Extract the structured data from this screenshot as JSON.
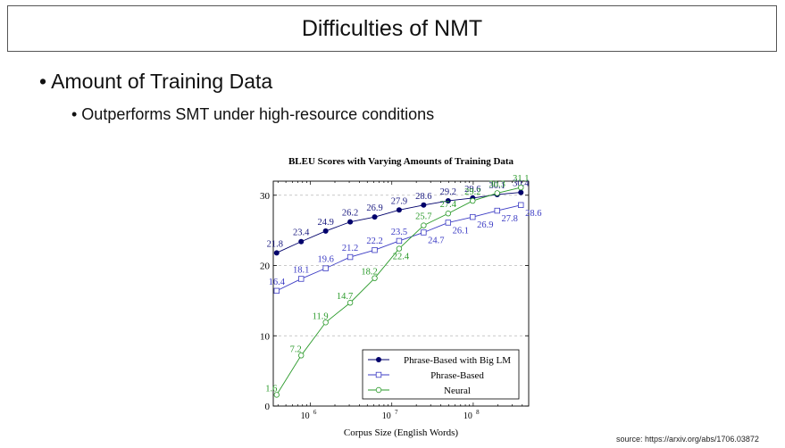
{
  "slide": {
    "title": "Difficulties of NMT",
    "bullet_1": "• Amount of Training Data",
    "bullet_2": "• Outperforms SMT under high-resource conditions",
    "source": "source: https://arxiv.org/abs/1706.03872"
  },
  "chart_data": {
    "type": "line",
    "title": "BLEU Scores with Varying Amounts of Training Data",
    "xlabel": "Corpus Size (English Words)",
    "ylabel": "",
    "x_scale": "log",
    "xlim": [
      350000,
      480000000
    ],
    "ylim": [
      0,
      32
    ],
    "x_ticks": [
      {
        "value": 1000000,
        "base": "10",
        "exp": "6"
      },
      {
        "value": 10000000,
        "base": "10",
        "exp": "7"
      },
      {
        "value": 100000000,
        "base": "10",
        "exp": "8"
      }
    ],
    "y_ticks": [
      0,
      10,
      20,
      30
    ],
    "grid": "horizontal dashed",
    "legend_position": "bottom-right",
    "x": [
      385000,
      770000,
      1540000,
      3080000,
      6160000,
      12300000,
      24600000,
      49200000,
      98500000,
      197000000,
      385000000
    ],
    "series": [
      {
        "name": "Phrase-Based with Big LM",
        "color": "#00006b",
        "marker": "filled-circle",
        "label_color": "#1a1a80",
        "values": [
          21.8,
          23.4,
          24.9,
          26.2,
          26.9,
          27.9,
          28.6,
          29.2,
          29.6,
          30.1,
          30.4
        ]
      },
      {
        "name": "Phrase-Based",
        "color": "#3b3bc4",
        "marker": "open-square",
        "label_color": "#3b3bc4",
        "values": [
          16.4,
          18.1,
          19.6,
          21.2,
          22.2,
          23.5,
          24.7,
          26.1,
          26.9,
          27.8,
          28.6
        ]
      },
      {
        "name": "Neural",
        "color": "#2a9a2a",
        "marker": "open-circle",
        "label_color": "#2a9a2a",
        "values": [
          1.6,
          7.2,
          11.9,
          14.7,
          18.2,
          22.4,
          25.7,
          27.4,
          29.2,
          30.3,
          31.1
        ]
      }
    ]
  }
}
